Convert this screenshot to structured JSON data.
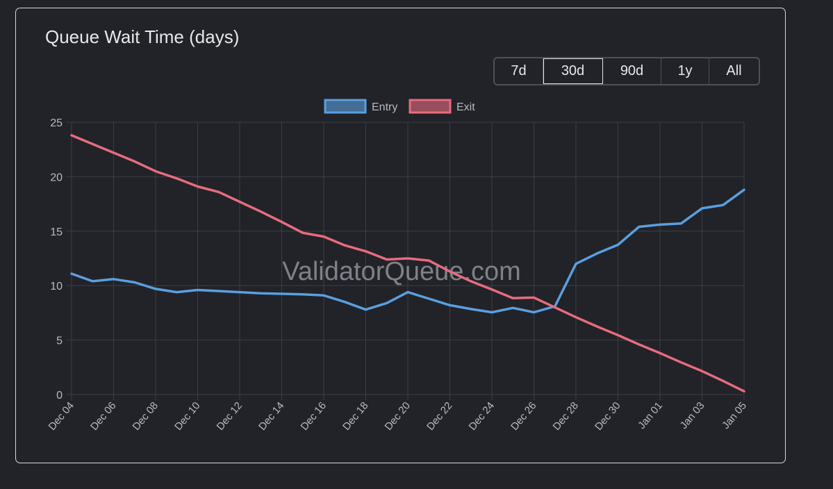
{
  "card": {
    "title": "Queue Wait Time (days)"
  },
  "range_buttons": [
    {
      "label": "7d",
      "active": false
    },
    {
      "label": "30d",
      "active": true
    },
    {
      "label": "90d",
      "active": false
    },
    {
      "label": "1y",
      "active": false
    },
    {
      "label": "All",
      "active": false
    }
  ],
  "colors": {
    "entry": "#5a9fe0",
    "exit": "#e86b80",
    "grid": "#3c3f45",
    "text": "#b8bbc0",
    "watermark": "#8e929a"
  },
  "chart_data": {
    "type": "line",
    "title": "Queue Wait Time (days)",
    "watermark": "ValidatorQueue.com",
    "xlabel": "",
    "ylabel": "",
    "ylim": [
      0,
      25
    ],
    "yticks": [
      0,
      5,
      10,
      15,
      20,
      25
    ],
    "legend_position": "top-center",
    "grid": true,
    "x": [
      "Dec 04",
      "Dec 05",
      "Dec 06",
      "Dec 07",
      "Dec 08",
      "Dec 09",
      "Dec 10",
      "Dec 11",
      "Dec 12",
      "Dec 13",
      "Dec 14",
      "Dec 15",
      "Dec 16",
      "Dec 17",
      "Dec 18",
      "Dec 19",
      "Dec 20",
      "Dec 21",
      "Dec 22",
      "Dec 23",
      "Dec 24",
      "Dec 25",
      "Dec 26",
      "Dec 27",
      "Dec 28",
      "Dec 29",
      "Dec 30",
      "Dec 31",
      "Jan 01",
      "Jan 02",
      "Jan 03",
      "Jan 04",
      "Jan 05"
    ],
    "xtick_labels": [
      "Dec 04",
      "Dec 06",
      "Dec 08",
      "Dec 10",
      "Dec 12",
      "Dec 14",
      "Dec 16",
      "Dec 18",
      "Dec 20",
      "Dec 22",
      "Dec 24",
      "Dec 26",
      "Dec 28",
      "Dec 30",
      "Jan 01",
      "Jan 03",
      "Jan 05"
    ],
    "series": [
      {
        "name": "Entry",
        "values": [
          11.1,
          10.4,
          10.6,
          10.3,
          9.7,
          9.4,
          9.6,
          9.5,
          9.4,
          9.3,
          9.25,
          9.2,
          9.1,
          8.5,
          7.8,
          8.4,
          9.4,
          8.8,
          8.2,
          7.85,
          7.55,
          7.95,
          7.55,
          8.1,
          12.0,
          12.95,
          13.75,
          15.4,
          15.6,
          15.7,
          17.1,
          17.4,
          18.8
        ]
      },
      {
        "name": "Exit",
        "values": [
          23.8,
          23.0,
          22.2,
          21.4,
          20.5,
          19.85,
          19.1,
          18.6,
          17.7,
          16.8,
          15.85,
          14.85,
          14.5,
          13.7,
          13.15,
          12.4,
          12.5,
          12.3,
          11.3,
          10.4,
          9.65,
          8.85,
          8.9,
          8.0,
          7.1,
          6.25,
          5.45,
          4.6,
          3.8,
          2.95,
          2.15,
          1.25,
          0.3
        ]
      }
    ]
  }
}
